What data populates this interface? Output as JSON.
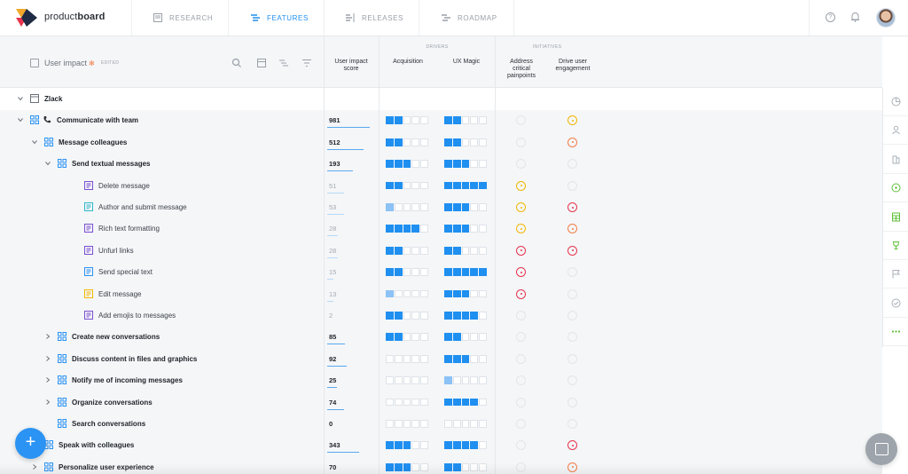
{
  "app": {
    "brand_prefix": "product",
    "brand_suffix": "board"
  },
  "nav": {
    "tabs": [
      {
        "label": "RESEARCH",
        "icon": "inbox-icon",
        "active": false
      },
      {
        "label": "FEATURES",
        "icon": "features-icon",
        "active": true
      },
      {
        "label": "RELEASES",
        "icon": "releases-icon",
        "active": false
      },
      {
        "label": "ROADMAP",
        "icon": "roadmap-icon",
        "active": false
      }
    ],
    "help_glyph": "?"
  },
  "view": {
    "title": "User impact",
    "edited": "EDITED"
  },
  "columns": {
    "score_label_1": "User impact",
    "score_label_2": "score",
    "drivers_group": "DRIVERS",
    "initiatives_group": "INITIATIVES",
    "drivers": [
      "Acquisition",
      "UX Magic"
    ],
    "initiative_1": [
      "Address",
      "critical",
      "painpoints"
    ],
    "initiative_2": [
      "Drive user",
      "engagement"
    ]
  },
  "team": {
    "name": "Zlack"
  },
  "rows": [
    {
      "name": "Communicate with team",
      "level": 1,
      "type": "phone",
      "expanded": true,
      "score": "981",
      "score_frac": 1.0,
      "acq": 2,
      "ux": 2,
      "i1": "none",
      "i2": "yellow"
    },
    {
      "name": "Message colleagues",
      "level": 2,
      "type": "component",
      "expanded": true,
      "score": "512",
      "score_frac": 0.85,
      "acq": 2,
      "ux": 2,
      "i1": "none",
      "i2": "orange"
    },
    {
      "name": "Send textual messages",
      "level": 3,
      "type": "component",
      "expanded": true,
      "score": "193",
      "score_frac": 0.6,
      "acq": 3,
      "ux": 3,
      "i1": "none",
      "i2": "none"
    },
    {
      "name": "Delete message",
      "level": 4,
      "type": "feature-purple",
      "score": "51",
      "score_frac": 0.4,
      "acq": 2,
      "ux": 5,
      "i1": "yellow",
      "i2": "none"
    },
    {
      "name": "Author and submit message",
      "level": 4,
      "type": "feature-teal",
      "score": "53",
      "score_frac": 0.4,
      "acq": 0.5,
      "ux": 3,
      "i1": "yellow",
      "i2": "red"
    },
    {
      "name": "Rich text formatting",
      "level": 4,
      "type": "feature-purple",
      "score": "28",
      "score_frac": 0.25,
      "acq": 4,
      "ux": 3,
      "i1": "yellow",
      "i2": "orange"
    },
    {
      "name": "Unfurl links",
      "level": 4,
      "type": "feature-purple",
      "score": "28",
      "score_frac": 0.25,
      "acq": 2,
      "ux": 2,
      "i1": "red",
      "i2": "red"
    },
    {
      "name": "Send special text",
      "level": 4,
      "type": "feature-blue",
      "score": "15",
      "score_frac": 0.15,
      "acq": 2,
      "ux": 5,
      "i1": "red",
      "i2": "none"
    },
    {
      "name": "Edit message",
      "level": 4,
      "type": "feature-yellow",
      "score": "13",
      "score_frac": 0.15,
      "acq": 0.5,
      "ux": 3,
      "i1": "red",
      "i2": "none"
    },
    {
      "name": "Add emojis to messages",
      "level": 4,
      "type": "feature-purple",
      "score": "2",
      "score_frac": 0.0,
      "acq": 2,
      "ux": 4,
      "i1": "none",
      "i2": "none"
    },
    {
      "name": "Create new conversations",
      "level": 3,
      "type": "component",
      "expanded": false,
      "score": "85",
      "score_frac": 0.42,
      "acq": 2,
      "ux": 2,
      "i1": "none",
      "i2": "none"
    },
    {
      "name": "Discuss content in files and graphics",
      "level": 3,
      "type": "component",
      "expanded": false,
      "score": "92",
      "score_frac": 0.45,
      "acq": 0,
      "ux": 3,
      "i1": "none",
      "i2": "none"
    },
    {
      "name": "Notify me of incoming messages",
      "level": 3,
      "type": "component",
      "expanded": false,
      "score": "25",
      "score_frac": 0.22,
      "acq": 0,
      "ux": 0.5,
      "i1": "none",
      "i2": "none"
    },
    {
      "name": "Organize conversations",
      "level": 3,
      "type": "component",
      "expanded": false,
      "score": "74",
      "score_frac": 0.4,
      "acq": 0,
      "ux": 4,
      "i1": "none",
      "i2": "none"
    },
    {
      "name": "Search conversations",
      "level": 3,
      "type": "component",
      "leaf": true,
      "score": "0",
      "score_frac": 0.0,
      "acq": 0,
      "ux": 0,
      "i1": "none",
      "i2": "none"
    },
    {
      "name": "Speak with colleagues",
      "level": 2,
      "type": "component",
      "expanded": false,
      "score": "343",
      "score_frac": 0.75,
      "acq": 3,
      "ux": 4,
      "i1": "none",
      "i2": "red"
    },
    {
      "name": "Personalize user experience",
      "level": 2,
      "type": "component",
      "expanded": false,
      "score": "70",
      "score_frac": 0.4,
      "acq": 3,
      "ux": 2,
      "i1": "none",
      "i2": "orange"
    }
  ],
  "rail_icons": [
    "pie-chart-icon",
    "users-icon",
    "building-icon",
    "target-icon",
    "calculator-icon",
    "trophy-icon",
    "flag-icon",
    "check-circle-icon",
    "more-icon"
  ],
  "fab_glyph": "+",
  "colors": {
    "accent": "#1f8ff0",
    "initiative_yellow": "#f2b705",
    "initiative_orange": "#f47c48",
    "initiative_red": "#e8344e"
  }
}
